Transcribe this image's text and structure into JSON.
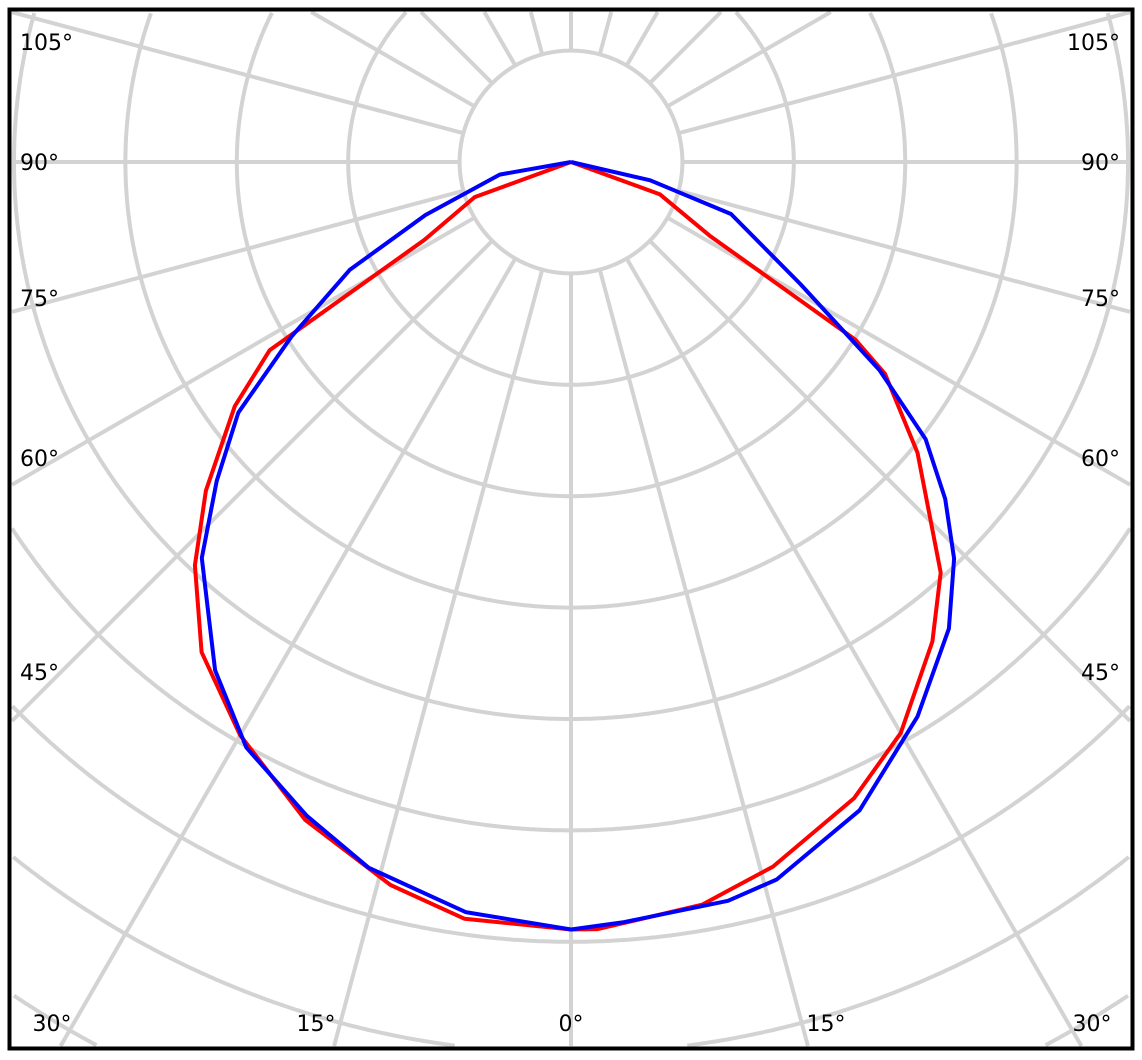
{
  "chart_data": {
    "type": "polar",
    "title": "",
    "angle_labels_left": [
      "105°",
      "90°",
      "75°",
      "60°",
      "45°"
    ],
    "angle_labels_right": [
      "105°",
      "90°",
      "75°",
      "60°",
      "45°"
    ],
    "angle_labels_bottom": [
      "30°",
      "15°",
      "0°",
      "15°",
      "30°"
    ],
    "angular_grid_step_deg": 15,
    "radial_grid_rings": 9,
    "radial_tick_labels": [],
    "grid": true,
    "grid_color": "#d3d3d3",
    "series": [
      {
        "color": "#ff0000",
        "left": [
          [
            0,
            6.89
          ],
          [
            8,
            6.86
          ],
          [
            14,
            6.69
          ],
          [
            22,
            6.37
          ],
          [
            30,
            5.94
          ],
          [
            37,
            5.51
          ],
          [
            43,
            4.95
          ],
          [
            48,
            4.41
          ],
          [
            54,
            3.73
          ],
          [
            58,
            3.19
          ],
          [
            62,
            1.49
          ],
          [
            70,
            0.92
          ],
          [
            90,
            0
          ]
        ],
        "right": [
          [
            0,
            6.89
          ],
          [
            2,
            6.89
          ],
          [
            10,
            6.77
          ],
          [
            16,
            6.58
          ],
          [
            24,
            6.25
          ],
          [
            30,
            5.92
          ],
          [
            37,
            5.39
          ],
          [
            42,
            4.96
          ],
          [
            50,
            4.06
          ],
          [
            56,
            3.4
          ],
          [
            58,
            3.01
          ],
          [
            62,
            1.41
          ],
          [
            70,
            0.85
          ],
          [
            90,
            0
          ]
        ]
      },
      {
        "color": "#0000ff",
        "left": [
          [
            0,
            6.89
          ],
          [
            8,
            6.8
          ],
          [
            16,
            6.59
          ],
          [
            22,
            6.33
          ],
          [
            29,
            6.01
          ],
          [
            35,
            5.57
          ],
          [
            43,
            4.86
          ],
          [
            48,
            4.28
          ],
          [
            53,
            3.74
          ],
          [
            58,
            2.96
          ],
          [
            64,
            2.21
          ],
          [
            70,
            1.39
          ],
          [
            80,
            0.65
          ],
          [
            90,
            0
          ]
        ],
        "right": [
          [
            0,
            6.89
          ],
          [
            4,
            6.84
          ],
          [
            12,
            6.78
          ],
          [
            16,
            6.7
          ],
          [
            24,
            6.37
          ],
          [
            32,
            5.87
          ],
          [
            39,
            5.39
          ],
          [
            44,
            4.95
          ],
          [
            48,
            4.52
          ],
          [
            52,
            4.04
          ],
          [
            56,
            3.34
          ],
          [
            62,
            2.33
          ],
          [
            72,
            1.51
          ],
          [
            77,
            0.73
          ],
          [
            90,
            0
          ]
        ]
      }
    ]
  }
}
